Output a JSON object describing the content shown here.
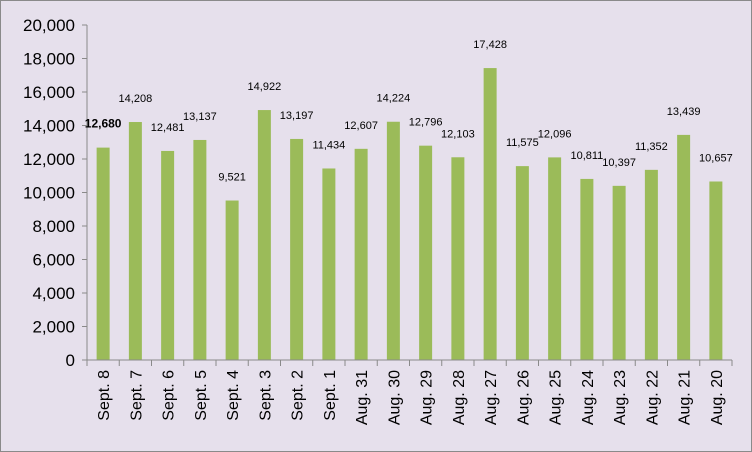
{
  "chart_data": {
    "type": "bar",
    "title": "",
    "xlabel": "",
    "ylabel": "",
    "categories": [
      "Sept. 8",
      "Sept. 7",
      "Sept. 6",
      "Sept. 5",
      "Sept. 4",
      "Sept. 3",
      "Sept. 2",
      "Sept. 1",
      "Aug. 31",
      "Aug. 30",
      "Aug. 29",
      "Aug. 28",
      "Aug. 27",
      "Aug. 26",
      "Aug. 25",
      "Aug. 24",
      "Aug. 23",
      "Aug. 22",
      "Aug. 21",
      "Aug. 20"
    ],
    "values": [
      12680,
      14208,
      12481,
      13137,
      9521,
      14922,
      13197,
      11434,
      12607,
      14224,
      12796,
      12103,
      17428,
      11575,
      12096,
      10811,
      10397,
      11352,
      13439,
      10657
    ],
    "data_labels": [
      "12,680",
      "14,208",
      "12,481",
      "13,137",
      "9,521",
      "14,922",
      "13,197",
      "11,434",
      "12,607",
      "14,224",
      "12,796",
      "12,103",
      "17,428",
      "11,575",
      "12,096",
      "10,811",
      "10,397",
      "11,352",
      "13,439",
      "10,657"
    ],
    "bold_label_index": 0,
    "ylim": [
      0,
      20000
    ],
    "yticks": [
      "0",
      "2,000",
      "4,000",
      "6,000",
      "8,000",
      "10,000",
      "12,000",
      "14,000",
      "16,000",
      "18,000",
      "20,000"
    ],
    "ytick_values": [
      0,
      2000,
      4000,
      6000,
      8000,
      10000,
      12000,
      14000,
      16000,
      18000,
      20000
    ],
    "grid": false,
    "legend": "none",
    "colors": {
      "bar": "#9bbb59",
      "background": "#e6e0ec",
      "axis": "#8a8a8a"
    }
  }
}
